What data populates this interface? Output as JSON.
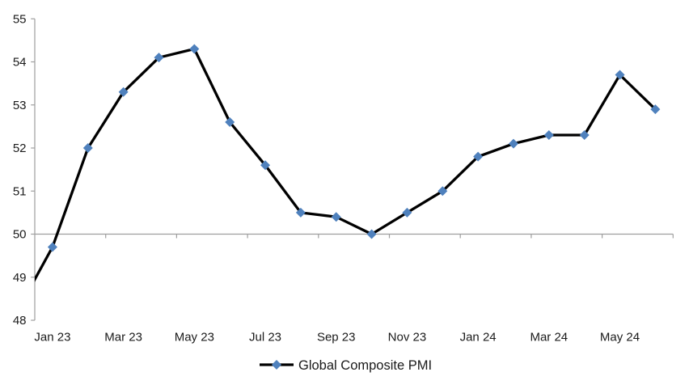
{
  "chart_data": {
    "type": "line",
    "title": "",
    "x": [
      "Dec 22",
      "Jan 23",
      "Feb 23",
      "Mar 23",
      "Apr 23",
      "May 23",
      "Jun 23",
      "Jul 23",
      "Aug 23",
      "Sep 23",
      "Oct 23",
      "Nov 23",
      "Dec 23",
      "Jan 24",
      "Feb 24",
      "Mar 24",
      "Apr 24",
      "May 24",
      "Jun 24"
    ],
    "series": [
      {
        "name": "Global Composite PMI",
        "values": [
          48.2,
          49.7,
          52.0,
          53.3,
          54.1,
          54.3,
          52.6,
          51.6,
          50.5,
          50.4,
          50.0,
          50.5,
          51.0,
          51.8,
          52.1,
          52.3,
          52.3,
          53.7,
          52.9
        ],
        "line_color": "#000000",
        "marker": "diamond",
        "marker_color": "#4F81BD"
      }
    ],
    "ylim": [
      48,
      55
    ],
    "y_tick_labels": [
      "55",
      "54",
      "53",
      "52",
      "51",
      "50",
      "49",
      "48"
    ],
    "x_tick_labels": [
      "Jan 23",
      "Mar 23",
      "May 23",
      "Jul 23",
      "Sep 23",
      "Nov 23",
      "Jan 24",
      "Mar 24",
      "May 24"
    ],
    "x_label_every_n_months": 2,
    "baseline_axis_value": 50,
    "grid": false,
    "axis_color": "#9E9E9E",
    "legend": {
      "label": "Global Composite PMI",
      "position": "bottom-center"
    },
    "notes": "Horizontal category axis line sits at value 50 with labels shown at the bottom; the first point (Dec 22) lies left of the plot area so its connecting segment is clipped at the y-axis, entering the plot near 48.9."
  }
}
